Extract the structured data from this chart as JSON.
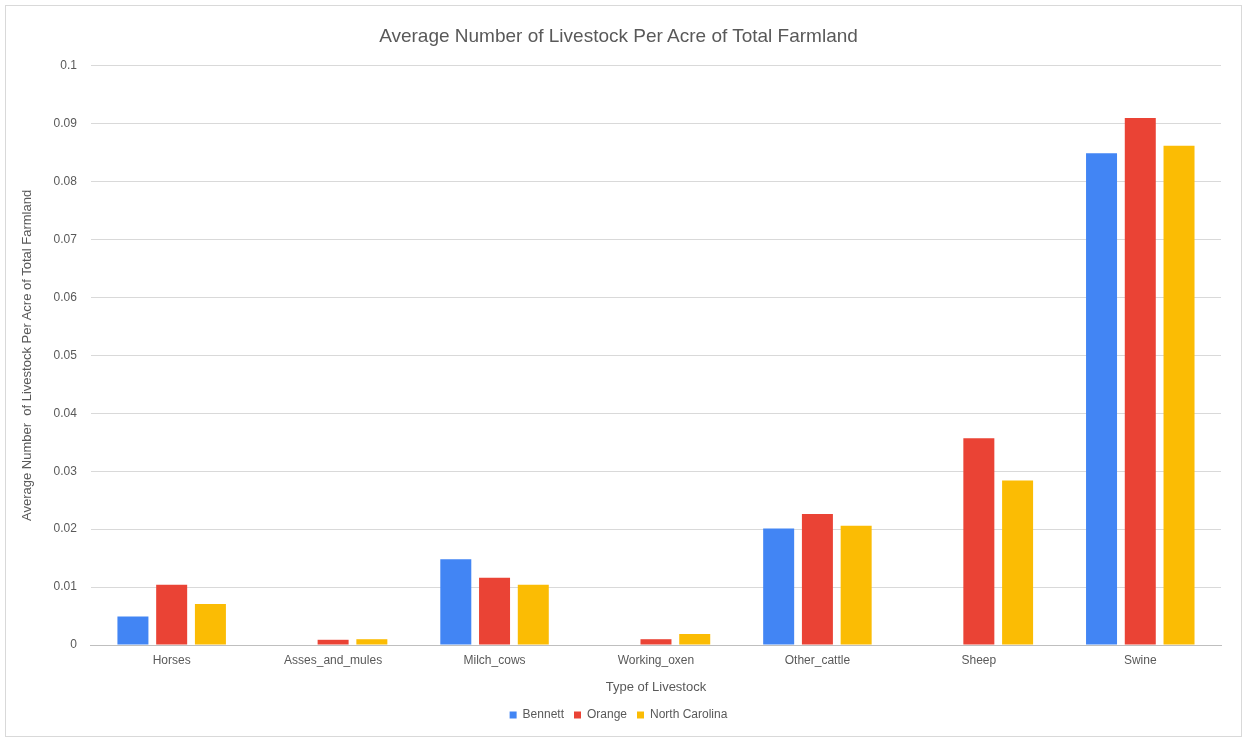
{
  "chart_data": {
    "type": "bar",
    "title": "Average Number of Livestock Per Acre of Total Farmland",
    "xlabel": "Type of Livestock",
    "ylabel": "Average Number  of Livestock Per Acre of Total Farmland",
    "categories": [
      "Horses",
      "Asses_and_mules",
      "Milch_cows",
      "Working_oxen",
      "Other_cattle",
      "Sheep",
      "Swine"
    ],
    "series": [
      {
        "name": "Bennett",
        "color": "#4285f4",
        "values": [
          0.0049,
          0,
          0.0148,
          0,
          0.0201,
          0,
          0.0849
        ]
      },
      {
        "name": "Orange",
        "color": "#ea4335",
        "values": [
          0.0104,
          0.0009,
          0.0116,
          0.001,
          0.0226,
          0.0357,
          0.091
        ]
      },
      {
        "name": "North Carolina",
        "color": "#fbbc04",
        "values": [
          0.0071,
          0.001,
          0.0104,
          0.0019,
          0.0206,
          0.0284,
          0.0862
        ]
      }
    ],
    "ylim": [
      0,
      0.1
    ],
    "yticks": [
      0,
      0.01,
      0.02,
      0.03,
      0.04,
      0.05,
      0.06,
      0.07,
      0.08,
      0.09,
      0.1
    ],
    "grid": "y",
    "legend": "bottom"
  }
}
